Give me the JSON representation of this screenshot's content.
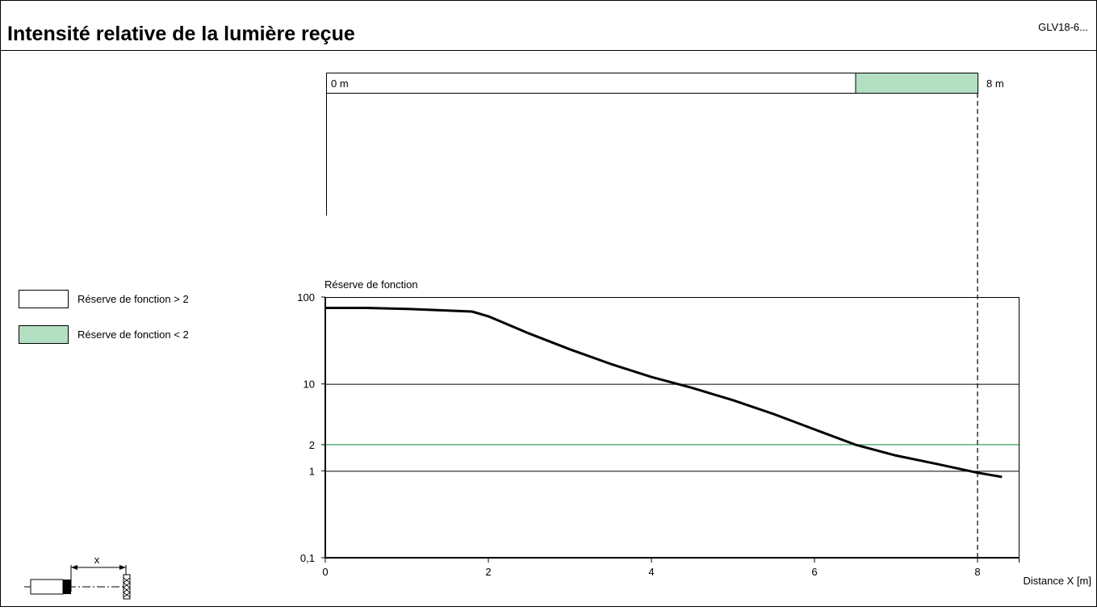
{
  "header": {
    "title": "Intensité relative de la lumière reçue",
    "model": "GLV18-6..."
  },
  "range_bar": {
    "start_label": "0 m",
    "end_label": "8 m",
    "max_m": 8,
    "reserve_low_start_m": 6.5,
    "reserve_low_color": "#b3dfc2"
  },
  "legend": {
    "items": [
      {
        "label": "Réserve de fonction > 2",
        "color": "#ffffff"
      },
      {
        "label": "Réserve de fonction < 2",
        "color": "#b3dfc2"
      }
    ]
  },
  "chart_data": {
    "type": "line",
    "ylabel": "Réserve de fonction",
    "xlabel": "Distance X [m]",
    "yscale": "log",
    "xlim": [
      0,
      8.5
    ],
    "ylim": [
      0.1,
      100
    ],
    "xticks": [
      0,
      2,
      4,
      6,
      8
    ],
    "xtick_labels": [
      "0",
      "2",
      "4",
      "6",
      "8"
    ],
    "yticks": [
      0.1,
      1,
      2,
      10,
      100
    ],
    "ytick_labels": [
      "0,1",
      "1",
      "2",
      "10",
      "100"
    ],
    "gridlines_y": [
      1,
      10,
      100
    ],
    "threshold": {
      "value": 2,
      "color": "#1f9a4e"
    },
    "range_marker_x": 8,
    "series": [
      {
        "x": [
          0,
          0.5,
          1.0,
          1.5,
          1.8,
          2.0,
          2.2,
          2.5,
          3.0,
          3.5,
          4.0,
          4.5,
          5.0,
          5.5,
          6.0,
          6.5,
          7.0,
          7.5,
          8.0,
          8.3
        ],
        "y": [
          75,
          75,
          73,
          70,
          68,
          60,
          50,
          38,
          25,
          17,
          12,
          9,
          6.5,
          4.5,
          3.0,
          2.0,
          1.5,
          1.2,
          0.95,
          0.85
        ]
      }
    ]
  }
}
